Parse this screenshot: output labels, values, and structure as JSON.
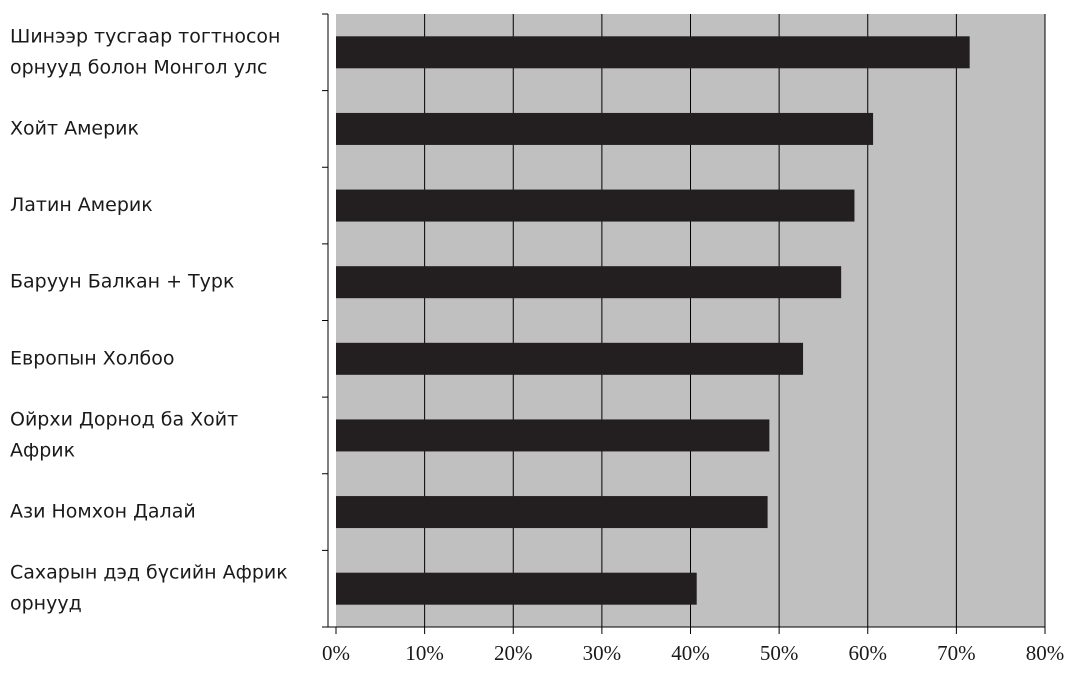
{
  "chart_data": {
    "type": "bar",
    "orientation": "horizontal",
    "title": "",
    "xlabel": "",
    "ylabel": "",
    "categories": [
      [
        "Шинээр тусгаар тогтносон",
        "орнууд болон Монгол улс"
      ],
      [
        "Хойт Америк"
      ],
      [
        "Латин Америк"
      ],
      [
        "Баруун Балкан + Турк"
      ],
      [
        "Европын Холбоо"
      ],
      [
        "Ойрхи Дорнод ба Хойт",
        "Африк"
      ],
      [
        "Ази Номхон Далай"
      ],
      [
        "Сахарын дэд бүсийн Африк",
        "орнууд"
      ]
    ],
    "values": [
      71.5,
      60.6,
      58.5,
      57.0,
      52.7,
      48.9,
      48.7,
      40.7
    ],
    "xlim": [
      0,
      80
    ],
    "xticks": [
      0,
      10,
      20,
      30,
      40,
      50,
      60,
      70,
      80
    ],
    "tick_labels": [
      "0%",
      "10%",
      "20%",
      "30%",
      "40%",
      "50%",
      "60%",
      "70%",
      "80%"
    ],
    "grid": true,
    "legend": "none",
    "colors": {
      "plot_background": "#c0c0c0",
      "bar": "#231f20",
      "grid": "#000000",
      "text": "#1a1a1a"
    }
  }
}
